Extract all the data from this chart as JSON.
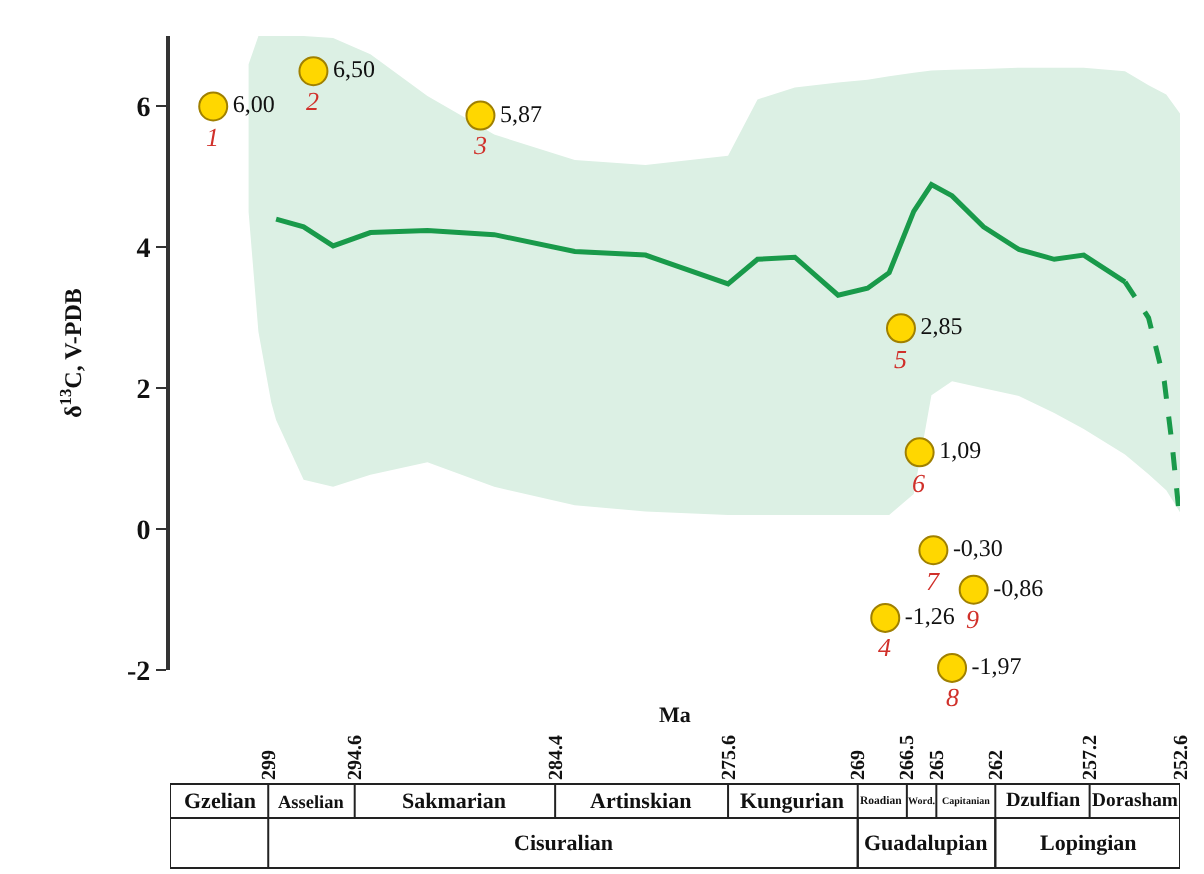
{
  "chart_data": {
    "type": "line",
    "ylabel": "δ$^{13}$C, V-PDB",
    "xlabel": "Ma",
    "ylim": [
      -2,
      7
    ],
    "yticks": [
      -2,
      0,
      2,
      4,
      6
    ],
    "xlim": [
      304,
      252.6
    ],
    "xticks": [
      299,
      294.6,
      284.4,
      275.6,
      269,
      266.5,
      265,
      262,
      257.2,
      252.6
    ],
    "series": [
      {
        "color": "#199a4a",
        "line_style": "solid",
        "marker": "none",
        "x": [
          300.0,
          299.5,
          298.85,
          298.6,
          297.2,
          295.7,
          293.8,
          290.9,
          287.5,
          283.4,
          279.8,
          275.6,
          274.1,
          272.2,
          270.0,
          268.5,
          267.4,
          266.15,
          265.25,
          264.2,
          262.6,
          260.8,
          259.0,
          257.5,
          255.4,
          254.2,
          253.3,
          252.6
        ],
        "values": [
          null,
          null,
          null,
          4.4,
          4.29,
          4.02,
          4.21,
          4.24,
          4.18,
          3.94,
          3.89,
          3.48,
          3.83,
          3.86,
          3.32,
          3.42,
          3.64,
          4.51,
          4.89,
          4.73,
          4.29,
          3.97,
          3.83,
          3.89,
          3.51,
          null,
          null,
          null
        ],
        "lower": [
          4.5,
          2.8,
          1.8,
          1.55,
          0.7,
          0.6,
          0.77,
          0.95,
          0.6,
          0.34,
          0.25,
          0.2,
          0.2,
          0.2,
          0.2,
          0.2,
          0.2,
          0.5,
          1.9,
          2.1,
          2.0,
          1.89,
          1.65,
          1.42,
          1.06,
          0.78,
          0.55,
          0.24
        ],
        "upper": [
          6.6,
          7.0,
          7.0,
          7.0,
          7.0,
          6.97,
          6.74,
          6.15,
          5.6,
          5.24,
          5.17,
          5.3,
          6.1,
          6.27,
          6.34,
          6.38,
          6.43,
          6.48,
          6.51,
          6.52,
          6.53,
          6.55,
          6.55,
          6.55,
          6.5,
          6.3,
          6.17,
          5.9
        ]
      },
      {
        "type": "line",
        "color": "#199a4a",
        "line_style": "dashed",
        "marker": "none",
        "x": [
          255.4,
          254.2,
          253.4,
          253.0,
          252.6
        ],
        "values": [
          3.51,
          3.0,
          2.1,
          1.2,
          0.1
        ]
      },
      {
        "type": "scatter",
        "color": "#ffd700",
        "marker": "circle",
        "x": [
          301.8,
          296.7,
          288.2,
          267.6,
          266.8,
          265.85,
          265.15,
          264.2,
          263.1
        ],
        "values": [
          6.0,
          6.5,
          5.87,
          -1.26,
          2.85,
          1.09,
          -0.3,
          -1.97,
          -0.86
        ],
        "value_labels": [
          "6,00",
          "6,50",
          "5,87",
          "-1,26",
          "2,85",
          "1,09",
          "-0,30",
          "-1,97",
          "-0,86"
        ]
      }
    ],
    "annotations": [
      "Gzelian",
      "Asselian",
      "Sakmarian",
      "Artinskian",
      "Kungurian",
      "Roadian",
      "Word.",
      "Capitanian",
      "Dzulfian",
      "Dorasham",
      "Cisuralian",
      "Guadalupian",
      "Lopingian",
      {
        "text": "1",
        "x": 301.8,
        "y": 6.0
      },
      {
        "text": "2",
        "x": 296.7,
        "y": 6.5
      },
      {
        "text": "3",
        "x": 288.2,
        "y": 5.87
      },
      {
        "text": "4",
        "x": 267.6,
        "y": -1.26
      },
      {
        "text": "5",
        "x": 266.8,
        "y": 2.85
      },
      {
        "text": "6",
        "x": 265.85,
        "y": 1.09
      },
      {
        "text": "7",
        "x": 265.15,
        "y": -0.3
      },
      {
        "text": "8",
        "x": 264.2,
        "y": -1.97
      },
      {
        "text": "9",
        "x": 263.1,
        "y": -0.86
      }
    ]
  }
}
